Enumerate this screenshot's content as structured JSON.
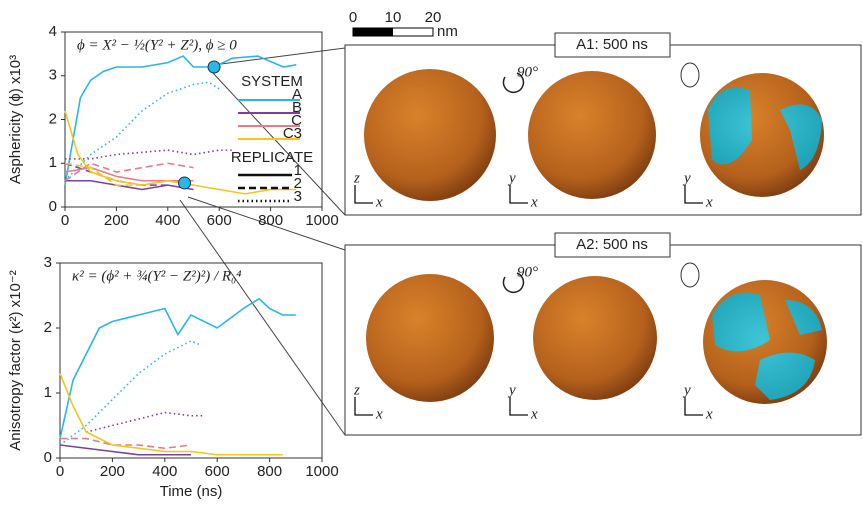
{
  "chart_data": [
    {
      "type": "line",
      "ylabel": "Asphericity (ϕ) x10³",
      "annotation": "ϕ = X² − ½(Y² + Z²), ϕ ≥ 0",
      "xlim": [
        0,
        1000
      ],
      "xticks": [
        0,
        200,
        400,
        600,
        800,
        1000
      ],
      "ylim": [
        0,
        4
      ],
      "yticks": [
        0,
        1,
        2,
        3,
        4
      ],
      "legend": {
        "system_title": "SYSTEM",
        "systems": [
          {
            "label": "A",
            "color": "#29b6e8"
          },
          {
            "label": "B",
            "color": "#7b3fa0"
          },
          {
            "label": "C",
            "color": "#e87a8a"
          },
          {
            "label": "C3",
            "color": "#f5c518"
          }
        ],
        "replicate_title": "REPLICATE",
        "replicates": [
          {
            "label": "1",
            "dash": "solid"
          },
          {
            "label": "2",
            "dash": "dashed"
          },
          {
            "label": "3",
            "dash": "dotted"
          }
        ]
      },
      "highlights": [
        {
          "x": 580,
          "y": 3.2
        },
        {
          "x": 465,
          "y": 0.55
        }
      ],
      "series": [
        {
          "color": "#29b6e8",
          "dash": "solid",
          "x": [
            0,
            30,
            60,
            100,
            150,
            200,
            300,
            400,
            460,
            500,
            580,
            650,
            750,
            850,
            900
          ],
          "values": [
            0.5,
            1.5,
            2.5,
            2.9,
            3.1,
            3.2,
            3.2,
            3.3,
            3.45,
            3.2,
            3.2,
            3.4,
            3.45,
            3.2,
            3.25
          ]
        },
        {
          "color": "#29b6e8",
          "dash": "dotted",
          "x": [
            0,
            100,
            200,
            300,
            400,
            500,
            560,
            600
          ],
          "values": [
            0.6,
            1.2,
            1.6,
            2.2,
            2.6,
            2.8,
            2.85,
            2.7
          ]
        },
        {
          "color": "#7b3fa0",
          "dash": "solid",
          "x": [
            0,
            100,
            200,
            300,
            400,
            500
          ],
          "values": [
            0.6,
            0.6,
            0.5,
            0.4,
            0.5,
            0.4
          ]
        },
        {
          "color": "#7b3fa0",
          "dash": "dashed",
          "x": [
            0,
            100,
            200,
            300,
            400
          ],
          "values": [
            1.0,
            0.8,
            0.6,
            0.5,
            0.5
          ]
        },
        {
          "color": "#7b3fa0",
          "dash": "dotted",
          "x": [
            0,
            100,
            200,
            300,
            400,
            500,
            600,
            650
          ],
          "values": [
            1.1,
            1.1,
            1.2,
            1.25,
            1.3,
            1.2,
            1.3,
            1.3
          ]
        },
        {
          "color": "#e87a8a",
          "dash": "solid",
          "x": [
            0,
            100,
            200,
            300,
            400,
            500
          ],
          "values": [
            0.8,
            0.9,
            0.7,
            0.6,
            0.6,
            0.6
          ]
        },
        {
          "color": "#e87a8a",
          "dash": "dashed",
          "x": [
            0,
            100,
            200,
            300,
            400,
            500
          ],
          "values": [
            0.6,
            1.0,
            0.8,
            0.9,
            1.0,
            0.9
          ]
        },
        {
          "color": "#f5c518",
          "dash": "solid",
          "x": [
            0,
            50,
            100,
            200,
            300,
            400,
            500,
            600,
            700,
            800,
            900
          ],
          "values": [
            2.2,
            1.2,
            0.8,
            0.6,
            0.5,
            0.6,
            0.5,
            0.4,
            0.3,
            0.4,
            0.4
          ]
        },
        {
          "color": "#f5c518",
          "dash": "dashed",
          "x": [
            0,
            100,
            200,
            300,
            400,
            500
          ],
          "values": [
            1.0,
            0.9,
            0.5,
            0.5,
            0.6,
            0.5
          ]
        }
      ]
    },
    {
      "type": "line",
      "ylabel": "Anisotropy factor (κ²) x10⁻²",
      "xlabel": "Time (ns)",
      "annotation": "κ² = (ϕ² + ¾(Y² − Z²)²) / R₀⁴",
      "xlim": [
        0,
        1000
      ],
      "xticks": [
        0,
        200,
        400,
        600,
        800,
        1000
      ],
      "ylim": [
        0,
        3
      ],
      "yticks": [
        0,
        1,
        2,
        3
      ],
      "series": [
        {
          "color": "#29b6e8",
          "dash": "solid",
          "x": [
            0,
            50,
            100,
            150,
            200,
            300,
            400,
            450,
            500,
            600,
            700,
            760,
            800,
            850,
            900
          ],
          "values": [
            0.3,
            1.2,
            1.6,
            2.0,
            2.1,
            2.2,
            2.3,
            1.9,
            2.2,
            2.0,
            2.3,
            2.45,
            2.3,
            2.2,
            2.2
          ]
        },
        {
          "color": "#29b6e8",
          "dash": "dotted",
          "x": [
            0,
            100,
            200,
            300,
            400,
            500,
            530
          ],
          "values": [
            0.2,
            0.5,
            0.9,
            1.3,
            1.6,
            1.8,
            1.75
          ]
        },
        {
          "color": "#7b3fa0",
          "dash": "dotted",
          "x": [
            100,
            200,
            300,
            400,
            500,
            550
          ],
          "values": [
            0.4,
            0.5,
            0.6,
            0.7,
            0.65,
            0.65
          ]
        },
        {
          "color": "#7b3fa0",
          "dash": "solid",
          "x": [
            0,
            100,
            200,
            300,
            400,
            500
          ],
          "values": [
            0.2,
            0.15,
            0.1,
            0.05,
            0.05,
            0.05
          ]
        },
        {
          "color": "#e87a8a",
          "dash": "dashed",
          "x": [
            0,
            100,
            200,
            300,
            400,
            500
          ],
          "values": [
            0.3,
            0.3,
            0.2,
            0.2,
            0.15,
            0.2
          ]
        },
        {
          "color": "#f5c518",
          "dash": "solid",
          "x": [
            0,
            50,
            100,
            200,
            300,
            400,
            500,
            600,
            700,
            850
          ],
          "values": [
            1.3,
            0.8,
            0.4,
            0.2,
            0.15,
            0.1,
            0.1,
            0.05,
            0.05,
            0.05
          ]
        }
      ]
    }
  ],
  "figure": {
    "scale_bar": {
      "ticks": [
        0,
        10,
        20
      ],
      "unit": "nm"
    },
    "panels": [
      {
        "title": "A1: 500 ns",
        "rotation": "90°",
        "views": [
          [
            "z",
            "x"
          ],
          [
            "y",
            "x"
          ],
          [
            "y",
            "x"
          ]
        ]
      },
      {
        "title": "A2: 500 ns",
        "rotation": "90°",
        "views": [
          [
            "z",
            "x"
          ],
          [
            "y",
            "x"
          ],
          [
            "y",
            "x"
          ]
        ]
      }
    ]
  }
}
